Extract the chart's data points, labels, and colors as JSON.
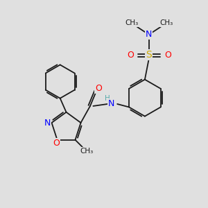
{
  "background_color": "#e0e0e0",
  "colors": {
    "carbon": "#1a1a1a",
    "nitrogen": "#0000ff",
    "oxygen": "#ff0000",
    "sulfur": "#ccaa00",
    "hydrogen": "#5aacac",
    "bond": "#1a1a1a",
    "background": "#e0e0e0"
  },
  "layout": {
    "xlim": [
      0,
      10
    ],
    "ylim": [
      0,
      10
    ]
  }
}
